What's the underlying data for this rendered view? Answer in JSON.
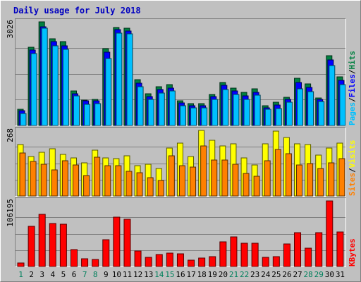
{
  "chart_data": {
    "type": "bar",
    "title": "Daily usage for July 2018",
    "days": [
      "1",
      "2",
      "3",
      "4",
      "5",
      "6",
      "7",
      "8",
      "9",
      "10",
      "11",
      "12",
      "13",
      "14",
      "15",
      "16",
      "17",
      "18",
      "19",
      "20",
      "21",
      "22",
      "23",
      "24",
      "25",
      "26",
      "27",
      "28",
      "29",
      "30",
      "31"
    ],
    "weekend_days": [
      "1",
      "7",
      "8",
      "14",
      "15",
      "21",
      "22",
      "28",
      "29"
    ],
    "panels": [
      {
        "id": "hits",
        "max_label": "3026",
        "ymax": 3026,
        "legend": [
          "Pages",
          "/",
          "Files",
          "/",
          "Hits"
        ],
        "series": [
          {
            "name": "Hits",
            "color": "#008040",
            "values": [
              464,
              2290,
              3026,
              2535,
              2440,
              1000,
              746,
              752,
              2245,
              2860,
              2840,
              1342,
              918,
              1135,
              1190,
              720,
              639,
              628,
              906,
              1252,
              1085,
              971,
              1068,
              582,
              679,
              830,
              1370,
              1210,
              810,
              2046,
              1419
            ]
          },
          {
            "name": "Files",
            "color": "#0000ff",
            "values": [
              430,
              2200,
              2880,
              2440,
              2320,
              930,
              715,
              722,
              2150,
              2800,
              2760,
              1230,
              848,
              1050,
              1090,
              658,
              568,
              568,
              850,
              1170,
              1000,
              860,
              960,
              522,
              592,
              754,
              1252,
              1112,
              755,
              1918,
              1320
            ]
          },
          {
            "name": "Pages",
            "color": "#00c0ff",
            "values": [
              345,
              2090,
              2840,
              2330,
              2225,
              872,
              615,
              631,
              1965,
              2700,
              2670,
              1130,
              765,
              953,
              1000,
              575,
              505,
              510,
              755,
              1045,
              906,
              768,
              890,
              465,
              485,
              682,
              1078,
              980,
              700,
              1748,
              1200
            ]
          }
        ]
      },
      {
        "id": "visits",
        "max_label": "268",
        "ymax": 268,
        "legend": [
          "Sites",
          "/",
          "Visits"
        ],
        "series": [
          {
            "name": "Visits",
            "color": "#ffff00",
            "values": [
              209,
              162,
              178,
              193,
              170,
              156,
              135,
              186,
              155,
              152,
              163,
              124,
              131,
              112,
              197,
              215,
              162,
              268,
              227,
              206,
              212,
              155,
              127,
              212,
              266,
              240,
              212,
              209,
              168,
              195,
              215
            ]
          },
          {
            "name": "Sites",
            "color": "#ff8000",
            "values": [
              175,
              142,
              129,
              108,
              143,
              128,
              84,
              158,
              123,
              124,
              102,
              94,
              74,
              64,
              164,
              124,
              118,
              205,
              147,
              148,
              129,
              93,
              80,
              145,
              189,
              173,
              128,
              132,
              113,
              135,
              154
            ]
          }
        ]
      },
      {
        "id": "kbytes",
        "max_label": "106195",
        "ymax": 106195,
        "legend": [
          "KBytes"
        ],
        "series": [
          {
            "name": "KBytes",
            "color": "#ff0000",
            "values": [
              6000,
              65000,
              85000,
              70000,
              69000,
              27000,
              12000,
              11000,
              43000,
              80000,
              76000,
              25000,
              15000,
              19000,
              22000,
              20000,
              10000,
              14000,
              16000,
              40000,
              48000,
              38000,
              38000,
              15000,
              16000,
              37000,
              55000,
              30000,
              55000,
              106195,
              56000
            ]
          }
        ]
      }
    ]
  }
}
